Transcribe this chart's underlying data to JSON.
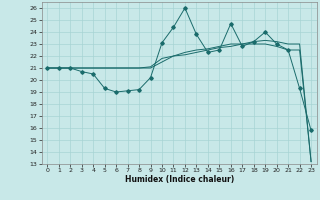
{
  "xlabel": "Humidex (Indice chaleur)",
  "bg_color": "#c8e8e8",
  "grid_color": "#a8d4d4",
  "line_color": "#1a6b6b",
  "xlim": [
    -0.5,
    23.5
  ],
  "ylim": [
    13,
    26.5
  ],
  "yticks": [
    13,
    14,
    15,
    16,
    17,
    18,
    19,
    20,
    21,
    22,
    23,
    24,
    25,
    26
  ],
  "xticks": [
    0,
    1,
    2,
    3,
    4,
    5,
    6,
    7,
    8,
    9,
    10,
    11,
    12,
    13,
    14,
    15,
    16,
    17,
    18,
    19,
    20,
    21,
    22,
    23
  ],
  "series1_x": [
    0,
    1,
    2,
    3,
    4,
    5,
    6,
    7,
    8,
    9,
    10,
    11,
    12,
    13,
    14,
    15,
    16,
    17,
    18,
    19,
    20,
    21,
    22,
    23
  ],
  "series1_y": [
    21.0,
    21.0,
    21.0,
    20.7,
    20.5,
    19.3,
    19.0,
    19.1,
    19.2,
    20.2,
    23.1,
    24.4,
    26.0,
    23.8,
    22.3,
    22.5,
    24.7,
    22.8,
    23.2,
    24.0,
    23.0,
    22.5,
    19.3,
    15.8
  ],
  "series2_x": [
    0,
    1,
    2,
    3,
    4,
    5,
    6,
    7,
    8,
    9,
    10,
    11,
    12,
    13,
    14,
    15,
    16,
    17,
    18,
    19,
    20,
    21,
    22,
    23
  ],
  "series2_y": [
    21.0,
    21.0,
    21.0,
    21.0,
    21.0,
    21.0,
    21.0,
    21.0,
    21.0,
    21.0,
    21.5,
    22.0,
    22.3,
    22.5,
    22.6,
    22.8,
    23.0,
    23.0,
    23.2,
    23.3,
    23.2,
    23.0,
    23.0,
    13.2
  ],
  "series3_x": [
    0,
    1,
    2,
    3,
    4,
    5,
    6,
    7,
    8,
    9,
    10,
    11,
    12,
    13,
    14,
    15,
    16,
    17,
    18,
    19,
    20,
    21,
    22,
    23
  ],
  "series3_y": [
    21.0,
    21.0,
    21.0,
    21.0,
    21.0,
    21.0,
    21.0,
    21.0,
    21.0,
    21.1,
    21.8,
    22.0,
    22.1,
    22.3,
    22.5,
    22.7,
    22.8,
    23.0,
    23.0,
    23.0,
    22.8,
    22.5,
    22.5,
    13.2
  ]
}
